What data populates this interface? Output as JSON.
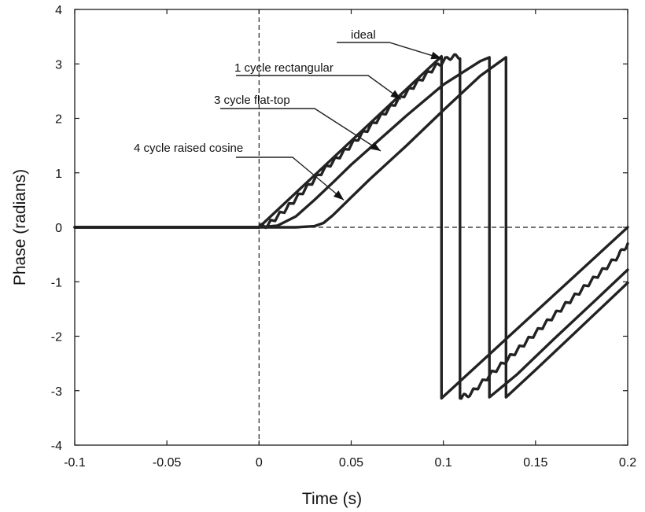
{
  "chart_data": {
    "type": "line",
    "title": "",
    "xlabel": "Time (s)",
    "ylabel": "Phase (radians)",
    "xlim": [
      -0.1,
      0.2
    ],
    "ylim": [
      -4,
      4
    ],
    "xticks": [
      -0.1,
      -0.05,
      0,
      0.05,
      0.1,
      0.15,
      0.2
    ],
    "xtick_labels": [
      "-0.1",
      "-0.05",
      "0",
      "0.05",
      "0.1",
      "0.15",
      "0.2"
    ],
    "yticks": [
      -4,
      -3,
      -2,
      -1,
      0,
      1,
      2,
      3,
      4
    ],
    "ytick_labels": [
      "-4",
      "-3",
      "-2",
      "-1",
      "0",
      "1",
      "2",
      "3",
      "4"
    ],
    "grid": false,
    "reference_lines": [
      {
        "orientation": "vertical",
        "x": 0,
        "style": "dashed"
      },
      {
        "orientation": "horizontal",
        "y": 0,
        "style": "dashed"
      }
    ],
    "series": [
      {
        "name": "ideal",
        "x": [
          -0.1,
          0,
          0.099,
          0.099,
          0.2
        ],
        "y": [
          0,
          0,
          3.14,
          -3.14,
          0.0
        ]
      },
      {
        "name": "1 cycle rectangular",
        "x": [
          -0.1,
          0,
          0.005,
          0.015,
          0.025,
          0.035,
          0.045,
          0.055,
          0.065,
          0.075,
          0.085,
          0.095,
          0.103,
          0.109,
          0.109,
          0.115,
          0.125,
          0.135,
          0.145,
          0.155,
          0.165,
          0.175,
          0.185,
          0.195,
          0.2
        ],
        "y": [
          0,
          0,
          0.05,
          0.35,
          0.7,
          1.05,
          1.35,
          1.68,
          2.0,
          2.32,
          2.63,
          2.93,
          3.12,
          3.14,
          -3.14,
          -3.05,
          -2.72,
          -2.42,
          -2.1,
          -1.78,
          -1.46,
          -1.15,
          -0.84,
          -0.52,
          -0.3
        ]
      },
      {
        "name": "3 cycle flat-top",
        "x": [
          -0.1,
          0,
          0.01,
          0.02,
          0.03,
          0.04,
          0.05,
          0.06,
          0.08,
          0.1,
          0.12,
          0.125,
          0.125,
          0.14,
          0.16,
          0.18,
          0.2
        ],
        "y": [
          0,
          0,
          0.03,
          0.2,
          0.5,
          0.82,
          1.15,
          1.45,
          2.05,
          2.62,
          3.05,
          3.12,
          -3.12,
          -2.7,
          -2.05,
          -1.42,
          -0.78
        ]
      },
      {
        "name": "4 cycle raised cosine",
        "x": [
          -0.1,
          0,
          0.02,
          0.03,
          0.035,
          0.04,
          0.05,
          0.06,
          0.08,
          0.1,
          0.12,
          0.134,
          0.134,
          0.15,
          0.17,
          0.2
        ],
        "y": [
          0,
          0,
          0.0,
          0.02,
          0.08,
          0.22,
          0.55,
          0.88,
          1.5,
          2.15,
          2.78,
          3.12,
          -3.12,
          -2.62,
          -1.98,
          -1.02
        ]
      }
    ],
    "annotations": [
      {
        "text": "ideal",
        "target_series": "ideal",
        "target": [
          0.099,
          3.1
        ]
      },
      {
        "text": "1 cycle rectangular",
        "target_series": "1 cycle rectangular",
        "target": [
          0.077,
          2.35
        ]
      },
      {
        "text": "3 cycle flat-top",
        "target_series": "3 cycle flat-top",
        "target": [
          0.066,
          1.4
        ]
      },
      {
        "text": "4 cycle raised cosine",
        "target_series": "4 cycle raised cosine",
        "target": [
          0.046,
          0.5
        ]
      }
    ],
    "colors": {
      "lines": "#222222",
      "axes": "#1a1a1a"
    }
  }
}
